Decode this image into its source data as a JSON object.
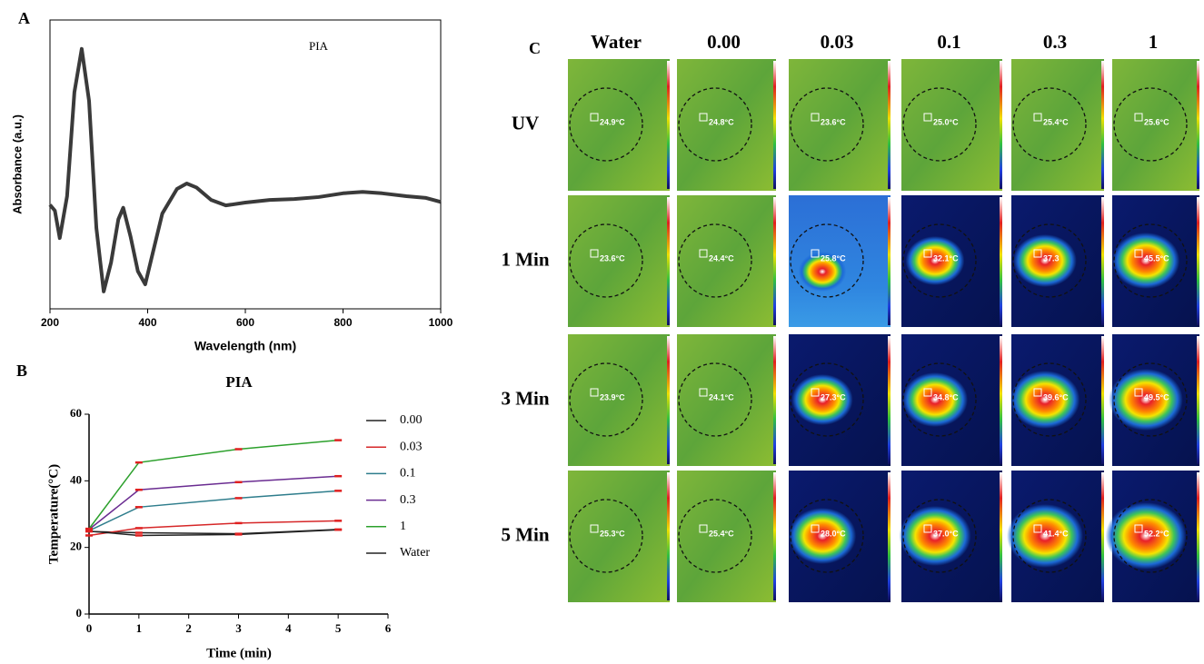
{
  "panel_labels": {
    "a": "A",
    "b": "B",
    "c": "C"
  },
  "chart_data": [
    {
      "type": "line",
      "x_label": "Wavelength (nm)",
      "y_label": "Absorbance (a.u.)",
      "x": [
        200,
        210,
        220,
        235,
        250,
        265,
        280,
        295,
        310,
        325,
        340,
        350,
        365,
        380,
        395,
        410,
        430,
        460,
        480,
        500,
        530,
        560,
        600,
        650,
        700,
        750,
        800,
        840,
        880,
        930,
        970,
        1000
      ],
      "series": [
        {
          "name": "PIA",
          "color": "#3a3a3a",
          "values": [
            0.36,
            0.34,
            0.245,
            0.39,
            0.75,
            0.9,
            0.72,
            0.28,
            0.06,
            0.16,
            0.31,
            0.35,
            0.25,
            0.13,
            0.085,
            0.19,
            0.33,
            0.415,
            0.434,
            0.42,
            0.377,
            0.358,
            0.368,
            0.377,
            0.38,
            0.387,
            0.4,
            0.405,
            0.4,
            0.39,
            0.384,
            0.37
          ]
        }
      ],
      "xlim": [
        200,
        1000
      ],
      "xticks": [
        200,
        400,
        600,
        800,
        1000
      ],
      "ylim": [
        0,
        1
      ]
    },
    {
      "type": "line",
      "title": "PIA",
      "x_label": "Time (min)",
      "y_label": "Temperature(°C)",
      "x": [
        0,
        1,
        3,
        5
      ],
      "series": [
        {
          "name": "0.00",
          "color": "#222222",
          "values": [
            24.8,
            24.4,
            24.1,
            25.4
          ]
        },
        {
          "name": "0.03",
          "color": "#d62728",
          "values": [
            23.6,
            25.8,
            27.3,
            28.0
          ]
        },
        {
          "name": "0.1",
          "color": "#2e7d8c",
          "values": [
            25.0,
            32.1,
            34.8,
            37.0
          ]
        },
        {
          "name": "0.3",
          "color": "#6a2c91",
          "values": [
            25.4,
            37.3,
            39.6,
            41.4
          ]
        },
        {
          "name": "1",
          "color": "#2ca02c",
          "values": [
            25.6,
            45.5,
            49.5,
            52.2
          ]
        },
        {
          "name": "Water",
          "color": "#222222",
          "values": [
            24.9,
            23.6,
            23.9,
            25.3
          ]
        }
      ],
      "xlim": [
        0,
        6
      ],
      "xticks": [
        0,
        1,
        2,
        3,
        4,
        5,
        6
      ],
      "ylim": [
        0,
        60
      ],
      "yticks": [
        0,
        20,
        40,
        60
      ]
    }
  ],
  "thermal_grid": {
    "columns": [
      "Water",
      "0.00",
      "0.03",
      "0.1",
      "0.3",
      "1"
    ],
    "rows": [
      "UV",
      "1 Min",
      "3 Min",
      "5 Min"
    ],
    "readings": [
      [
        "24.9°C",
        "24.8°C",
        "23.6°C",
        "25.0°C",
        "25.4°C",
        "25.6°C"
      ],
      [
        "23.6°C",
        "24.4°C",
        "25.8°C",
        "32.1°C",
        "37.3",
        "45.5°C"
      ],
      [
        "23.9°C",
        "24.1°C",
        "27.3°C",
        "34.8°C",
        "39.6°C",
        "49.5°C"
      ],
      [
        "25.3°C",
        "25.4°C",
        "28.0°C",
        "37.0°C",
        "41.4°C",
        "52.2°C"
      ]
    ]
  }
}
